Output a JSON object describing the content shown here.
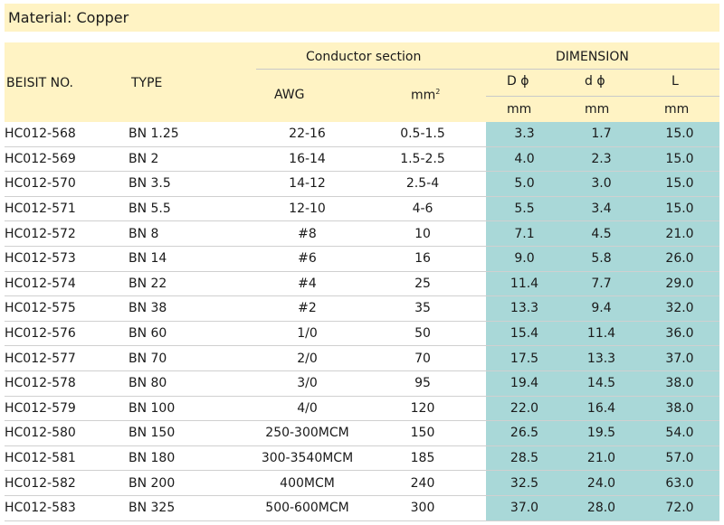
{
  "material": "Material: Copper",
  "header": {
    "beisit_no": "BEISIT NO.",
    "type": "TYPE",
    "conductor_section": "Conductor section",
    "awg": "AWG",
    "mm_base": "mm",
    "mm_sup": "2",
    "dimension": "DIMENSION",
    "D": "D ϕ",
    "d": "d ϕ",
    "L": "L",
    "unit_D": "mm",
    "unit_d": "mm",
    "unit_L": "mm"
  },
  "rows": [
    {
      "no": "HC012-568",
      "type": "BN 1.25",
      "awg": "22-16",
      "mm2": "0.5-1.5",
      "D": "3.3",
      "d": "1.7",
      "L": "15.0"
    },
    {
      "no": "HC012-569",
      "type": "BN 2",
      "awg": "16-14",
      "mm2": "1.5-2.5",
      "D": "4.0",
      "d": "2.3",
      "L": "15.0"
    },
    {
      "no": "HC012-570",
      "type": "BN 3.5",
      "awg": "14-12",
      "mm2": "2.5-4",
      "D": "5.0",
      "d": "3.0",
      "L": "15.0"
    },
    {
      "no": "HC012-571",
      "type": "BN 5.5",
      "awg": "12-10",
      "mm2": "4-6",
      "D": "5.5",
      "d": "3.4",
      "L": "15.0"
    },
    {
      "no": "HC012-572",
      "type": "BN 8",
      "awg": "#8",
      "mm2": "10",
      "D": "7.1",
      "d": "4.5",
      "L": "21.0"
    },
    {
      "no": "HC012-573",
      "type": "BN 14",
      "awg": "#6",
      "mm2": "16",
      "D": "9.0",
      "d": "5.8",
      "L": "26.0"
    },
    {
      "no": "HC012-574",
      "type": "BN 22",
      "awg": "#4",
      "mm2": "25",
      "D": "11.4",
      "d": "7.7",
      "L": "29.0"
    },
    {
      "no": "HC012-575",
      "type": "BN 38",
      "awg": "#2",
      "mm2": "35",
      "D": "13.3",
      "d": "9.4",
      "L": "32.0"
    },
    {
      "no": "HC012-576",
      "type": "BN 60",
      "awg": "1/0",
      "mm2": "50",
      "D": "15.4",
      "d": "11.4",
      "L": "36.0"
    },
    {
      "no": "HC012-577",
      "type": "BN 70",
      "awg": "2/0",
      "mm2": "70",
      "D": "17.5",
      "d": "13.3",
      "L": "37.0"
    },
    {
      "no": "HC012-578",
      "type": "BN 80",
      "awg": "3/0",
      "mm2": "95",
      "D": "19.4",
      "d": "14.5",
      "L": "38.0"
    },
    {
      "no": "HC012-579",
      "type": "BN 100",
      "awg": "4/0",
      "mm2": "120",
      "D": "22.0",
      "d": "16.4",
      "L": "38.0"
    },
    {
      "no": "HC012-580",
      "type": "BN 150",
      "awg": "250-300MCM",
      "mm2": "150",
      "D": "26.5",
      "d": "19.5",
      "L": "54.0"
    },
    {
      "no": "HC012-581",
      "type": "BN 180",
      "awg": "300-3540MCM",
      "mm2": "185",
      "D": "28.5",
      "d": "21.0",
      "L": "57.0"
    },
    {
      "no": "HC012-582",
      "type": "BN 200",
      "awg": "400MCM",
      "mm2": "240",
      "D": "32.5",
      "d": "24.0",
      "L": "63.0"
    },
    {
      "no": "HC012-583",
      "type": "BN 325",
      "awg": "500-600MCM",
      "mm2": "300",
      "D": "37.0",
      "d": "28.0",
      "L": "72.0"
    }
  ]
}
